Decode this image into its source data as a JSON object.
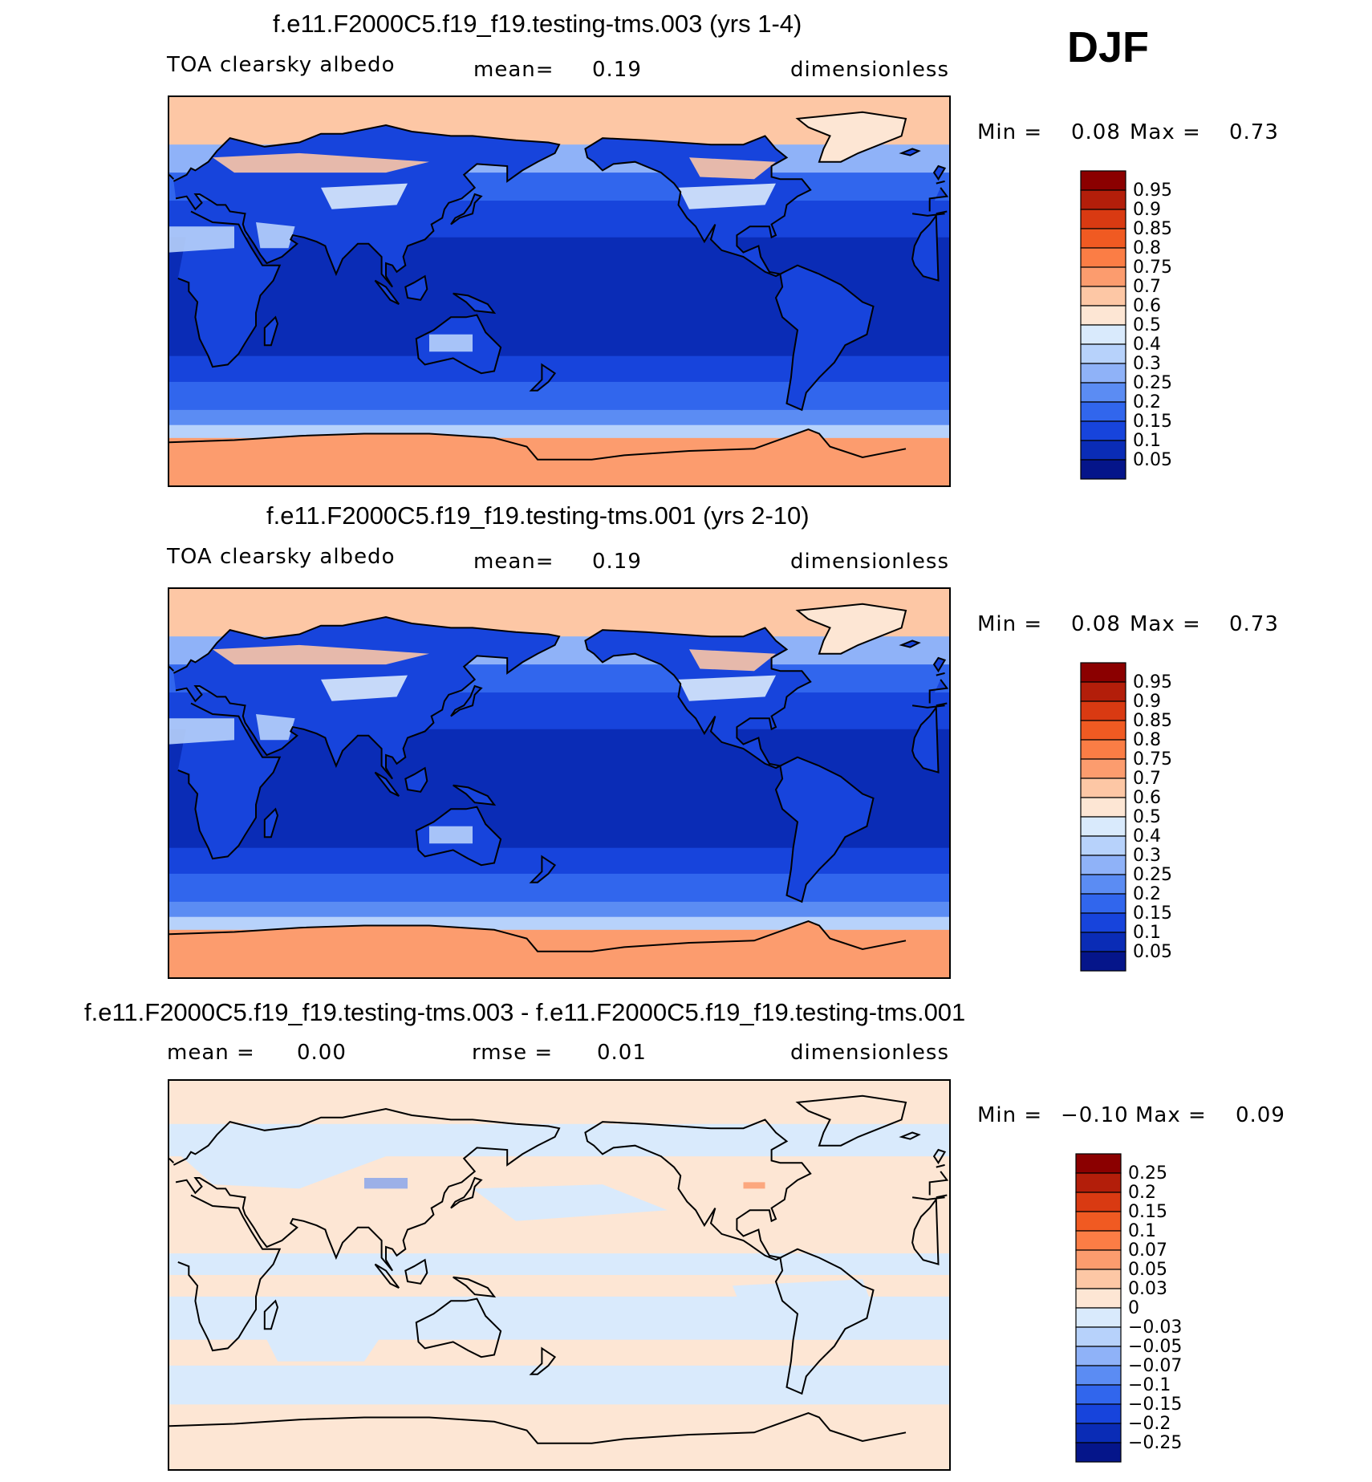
{
  "season": "DJF",
  "panels": [
    {
      "title": "f.e11.F2000C5.f19_f19.testing-tms.003 (yrs 1-4)",
      "variable": "TOA clearsky albedo",
      "mean_label": "mean=",
      "mean_value": "0.19",
      "units": "dimensionless",
      "min_label": "Min =",
      "min_value": "0.08",
      "max_label": "Max =",
      "max_value": "0.73",
      "colorbar": {
        "labels": [
          "0.95",
          "0.9",
          "0.85",
          "0.8",
          "0.75",
          "0.7",
          "0.6",
          "0.5",
          "0.4",
          "0.3",
          "0.25",
          "0.2",
          "0.15",
          "0.1",
          "0.05"
        ],
        "colors": [
          "#8b0000",
          "#b31e0a",
          "#d93a12",
          "#f05a22",
          "#fb7d45",
          "#fc9c6e",
          "#fdc7a5",
          "#fde6d4",
          "#d9eafc",
          "#b7d2fb",
          "#8fb2f8",
          "#5b8cf3",
          "#3166ed",
          "#1744dc",
          "#0a2cb6",
          "#05158a"
        ]
      },
      "map_fields": {
        "polar_north": "#fdc7a5",
        "polar_south": "#fc9c6e",
        "ocean_tropics": "#0a2cb6",
        "ocean_midlat": "#1744dc",
        "ocean_highlat": "#3166ed",
        "land_desert": "#b7d2fb",
        "land_tropic": "#1744dc",
        "land_snow": "#fde6d4"
      }
    },
    {
      "title": "f.e11.F2000C5.f19_f19.testing-tms.001 (yrs 2-10)",
      "variable": "TOA clearsky albedo",
      "mean_label": "mean=",
      "mean_value": "0.19",
      "units": "dimensionless",
      "min_label": "Min =",
      "min_value": "0.08",
      "max_label": "Max =",
      "max_value": "0.73",
      "colorbar": {
        "labels": [
          "0.95",
          "0.9",
          "0.85",
          "0.8",
          "0.75",
          "0.7",
          "0.6",
          "0.5",
          "0.4",
          "0.3",
          "0.25",
          "0.2",
          "0.15",
          "0.1",
          "0.05"
        ],
        "colors": [
          "#8b0000",
          "#b31e0a",
          "#d93a12",
          "#f05a22",
          "#fb7d45",
          "#fc9c6e",
          "#fdc7a5",
          "#fde6d4",
          "#d9eafc",
          "#b7d2fb",
          "#8fb2f8",
          "#5b8cf3",
          "#3166ed",
          "#1744dc",
          "#0a2cb6",
          "#05158a"
        ]
      },
      "map_fields": {
        "polar_north": "#fdc7a5",
        "polar_south": "#fc9c6e",
        "ocean_tropics": "#0a2cb6",
        "ocean_midlat": "#1744dc",
        "ocean_highlat": "#3166ed",
        "land_desert": "#b7d2fb",
        "land_tropic": "#1744dc",
        "land_snow": "#fde6d4"
      }
    },
    {
      "title": "f.e11.F2000C5.f19_f19.testing-tms.003 - f.e11.F2000C5.f19_f19.testing-tms.001",
      "variable_label": "mean =",
      "mean_value": "0.00",
      "rmse_label": "rmse =",
      "rmse_value": "0.01",
      "units": "dimensionless",
      "min_label": "Min =",
      "min_value": "−0.10",
      "max_label": "Max =",
      "max_value": "0.09",
      "colorbar": {
        "labels": [
          "0.25",
          "0.2",
          "0.15",
          "0.1",
          "0.07",
          "0.05",
          "0.03",
          "0",
          "−0.03",
          "−0.05",
          "−0.07",
          "−0.1",
          "−0.15",
          "−0.2",
          "−0.25"
        ],
        "colors": [
          "#8b0000",
          "#b31e0a",
          "#d93a12",
          "#f05a22",
          "#fb7d45",
          "#fc9c6e",
          "#fdc7a5",
          "#fde6d4",
          "#d9eafc",
          "#b7d2fb",
          "#8fb2f8",
          "#5b8cf3",
          "#3166ed",
          "#1744dc",
          "#0a2cb6",
          "#05158a"
        ]
      },
      "map_fields": {
        "positive": "#fde6d4",
        "negative": "#d9eafc",
        "strong_pos": "#fb7d45",
        "strong_neg": "#5b8cf3"
      }
    }
  ]
}
